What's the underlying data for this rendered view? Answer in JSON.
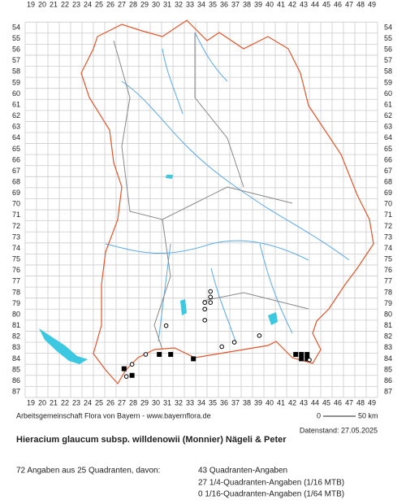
{
  "map": {
    "columns": [
      19,
      20,
      21,
      22,
      23,
      24,
      25,
      26,
      27,
      28,
      29,
      30,
      31,
      32,
      33,
      34,
      35,
      36,
      37,
      38,
      39,
      40,
      41,
      42,
      43,
      44,
      45,
      46,
      47,
      48,
      49
    ],
    "rows": [
      54,
      55,
      56,
      57,
      58,
      59,
      60,
      61,
      62,
      63,
      64,
      65,
      66,
      67,
      68,
      69,
      70,
      71,
      72,
      73,
      74,
      75,
      76,
      77,
      78,
      79,
      80,
      81,
      82,
      83,
      84,
      85,
      86,
      87
    ],
    "filled_squares": [
      {
        "x": 27.2,
        "y": 84.9
      },
      {
        "x": 27.9,
        "y": 85.5
      },
      {
        "x": 30.3,
        "y": 83.6
      },
      {
        "x": 31.3,
        "y": 83.6
      },
      {
        "x": 33.3,
        "y": 84.0
      },
      {
        "x": 42.3,
        "y": 83.6
      },
      {
        "x": 42.8,
        "y": 83.6
      },
      {
        "x": 43.3,
        "y": 83.6
      },
      {
        "x": 42.8,
        "y": 84.0
      },
      {
        "x": 43.3,
        "y": 84.0
      }
    ],
    "open_circles": [
      {
        "x": 27.9,
        "y": 84.5
      },
      {
        "x": 27.4,
        "y": 85.6
      },
      {
        "x": 29.1,
        "y": 83.6
      },
      {
        "x": 30.9,
        "y": 81.0
      },
      {
        "x": 34.8,
        "y": 77.9
      },
      {
        "x": 34.8,
        "y": 78.4
      },
      {
        "x": 34.8,
        "y": 78.9
      },
      {
        "x": 34.3,
        "y": 78.9
      },
      {
        "x": 34.3,
        "y": 79.5
      },
      {
        "x": 34.3,
        "y": 80.5
      },
      {
        "x": 35.8,
        "y": 82.9
      },
      {
        "x": 36.9,
        "y": 82.5
      },
      {
        "x": 39.1,
        "y": 81.9
      },
      {
        "x": 43.5,
        "y": 84.1
      }
    ]
  },
  "credit": "Arbeitsgemeinschaft Flora von Bayern - www.bayernflora.de",
  "scale": {
    "start": "0",
    "end": "50 km"
  },
  "date": "Datenstand: 27.05.2025",
  "title": "Hieracium glaucum subsp. willdenowii (Monnier) Nägeli & Peter",
  "stats": {
    "summary": "72 Angaben aus 25 Quadranten, davon:",
    "lines": [
      "43 Quadranten-Angaben",
      "27 1/4-Quadranten-Angaben (1/16 MTB)",
      "0 1/16-Quadranten-Angaben (1/64 MTB)"
    ]
  }
}
